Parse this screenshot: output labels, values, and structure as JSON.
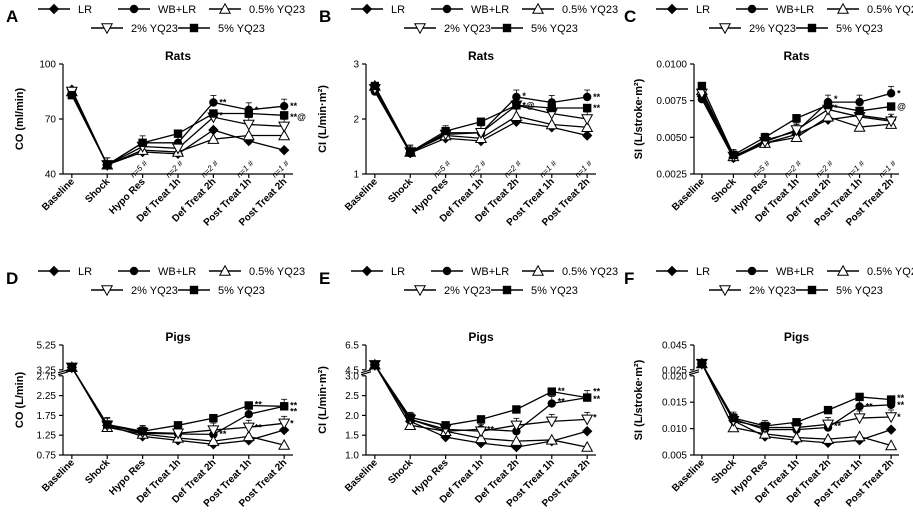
{
  "figure": {
    "legend_series": [
      "LR",
      "WB+LR",
      "0.5% YQ23",
      "2% YQ23",
      "5% YQ23"
    ]
  },
  "chart_data": [
    {
      "panel": "A",
      "type": "line",
      "title": "Rats",
      "xlabel": "",
      "ylabel": "CO (ml/min)",
      "categories": [
        "Baseline",
        "Shock",
        "Hypo Res",
        "Def Treat 1h",
        "Def Treat 2h",
        "Post Treat 1h",
        "Post Treat 2h"
      ],
      "ylim": [
        40,
        100
      ],
      "yscale": "linear",
      "yticks": [
        "40",
        "70",
        "100"
      ],
      "series": [
        {
          "name": "LR",
          "values": [
            86,
            45,
            52,
            51,
            64,
            58,
            53
          ]
        },
        {
          "name": "WB+LR",
          "values": [
            84,
            45,
            57,
            57,
            79,
            75,
            77
          ]
        },
        {
          "name": "0.5% YQ23",
          "values": [
            85,
            45,
            53,
            52,
            59,
            61,
            61
          ]
        },
        {
          "name": "2% YQ23",
          "values": [
            85,
            45,
            55,
            54,
            71,
            67,
            66
          ]
        },
        {
          "name": "5% YQ23",
          "values": [
            83,
            45,
            57,
            62,
            73,
            73,
            72
          ]
        }
      ],
      "annotations": [
        {
          "text": "n=5 #",
          "at": "Hypo Res"
        },
        {
          "text": "n=2 #",
          "at": "Def Treat 1h"
        },
        {
          "text": "n=2 #",
          "at": "Def Treat 2h"
        },
        {
          "text": "n=1 #",
          "at": "Post Treat 1h"
        },
        {
          "text": "n=1 #",
          "at": "Post Treat 2h"
        }
      ],
      "stars": [
        {
          "text": "**",
          "at": "Def Treat 2h",
          "y": 79
        },
        {
          "text": "*",
          "at": "Post Treat 1h",
          "y": 75
        },
        {
          "text": "**",
          "at": "Post Treat 2h",
          "y": 77
        },
        {
          "text": "**@",
          "at": "Post Treat 2h",
          "y": 71
        },
        {
          "text": "*",
          "at": "Def Treat 2h",
          "y": 72
        }
      ]
    },
    {
      "panel": "B",
      "type": "line",
      "title": "Rats",
      "xlabel": "",
      "ylabel": "CI (L/min·m²)",
      "categories": [
        "Baseline",
        "Shock",
        "Hypo Res",
        "Def Treat 1h",
        "Def Treat 2h",
        "Post Treat 1h",
        "Post Treat 2h"
      ],
      "ylim": [
        1,
        3
      ],
      "yscale": "linear",
      "yticks": [
        "1",
        "2",
        "3"
      ],
      "series": [
        {
          "name": "LR",
          "values": [
            2.55,
            1.38,
            1.65,
            1.6,
            1.95,
            1.85,
            1.7
          ]
        },
        {
          "name": "WB+LR",
          "values": [
            2.5,
            1.38,
            1.75,
            1.75,
            2.4,
            2.3,
            2.4
          ]
        },
        {
          "name": "0.5% YQ23",
          "values": [
            2.6,
            1.4,
            1.7,
            1.65,
            2.05,
            1.9,
            1.85
          ]
        },
        {
          "name": "2% YQ23",
          "values": [
            2.55,
            1.4,
            1.72,
            1.75,
            2.25,
            2.1,
            2.0
          ]
        },
        {
          "name": "5% YQ23",
          "values": [
            2.6,
            1.4,
            1.78,
            1.95,
            2.25,
            2.2,
            2.2
          ]
        }
      ],
      "annotations": [
        {
          "text": "n=5 #",
          "at": "Hypo Res"
        },
        {
          "text": "n=2 #",
          "at": "Def Treat 1h"
        },
        {
          "text": "n=2 #",
          "at": "Def Treat 2h"
        },
        {
          "text": "n=1 #",
          "at": "Post Treat 1h"
        },
        {
          "text": "n=1 #",
          "at": "Post Treat 2h"
        }
      ],
      "stars": [
        {
          "text": "*",
          "at": "Def Treat 2h",
          "y": 2.42
        },
        {
          "text": "**",
          "at": "Post Treat 2h",
          "y": 2.4
        },
        {
          "text": "**",
          "at": "Post Treat 2h",
          "y": 2.2
        },
        {
          "text": "*@",
          "at": "Def Treat 2h",
          "y": 2.25
        }
      ]
    },
    {
      "panel": "C",
      "type": "line",
      "title": "Rats",
      "xlabel": "",
      "ylabel": "SI (L/stroke·m²)",
      "categories": [
        "Baseline",
        "Shock",
        "Hypo Res",
        "Def Treat 1h",
        "Def Treat 2h",
        "Post Treat 1h",
        "Post Treat 2h"
      ],
      "ylim": [
        0.0025,
        0.01
      ],
      "yscale": "linear",
      "yticks": [
        "0.0025",
        "0.0050",
        "0.0075",
        "0.0100"
      ],
      "series": [
        {
          "name": "LR",
          "values": [
            0.0078,
            0.0036,
            0.0046,
            0.0052,
            0.0062,
            0.0065,
            0.0062
          ]
        },
        {
          "name": "WB+LR",
          "values": [
            0.0076,
            0.0036,
            0.0048,
            0.0054,
            0.0074,
            0.0074,
            0.008
          ]
        },
        {
          "name": "0.5% YQ23",
          "values": [
            0.0082,
            0.0037,
            0.0046,
            0.005,
            0.0064,
            0.0057,
            0.0059
          ]
        },
        {
          "name": "2% YQ23",
          "values": [
            0.008,
            0.0037,
            0.0047,
            0.0055,
            0.0069,
            0.0064,
            0.0061
          ]
        },
        {
          "name": "5% YQ23",
          "values": [
            0.0085,
            0.0038,
            0.005,
            0.0063,
            0.0072,
            0.0068,
            0.0071
          ]
        }
      ],
      "annotations": [
        {
          "text": "n=5 #",
          "at": "Hypo Res"
        },
        {
          "text": "n=2 #",
          "at": "Def Treat 1h"
        },
        {
          "text": "n=2 #",
          "at": "Def Treat 2h"
        },
        {
          "text": "n=1 #",
          "at": "Post Treat 1h"
        },
        {
          "text": "n=1 #",
          "at": "Post Treat 2h"
        }
      ],
      "stars": [
        {
          "text": "*",
          "at": "Def Treat 2h",
          "y": 0.0076
        },
        {
          "text": "*",
          "at": "Post Treat 2h",
          "y": 0.008
        },
        {
          "text": "@",
          "at": "Post Treat 2h",
          "y": 0.0071
        },
        {
          "text": "*",
          "at": "Def Treat 2h",
          "y": 0.007
        }
      ]
    },
    {
      "panel": "D",
      "type": "line",
      "title": "Pigs",
      "xlabel": "",
      "ylabel": "CO (L/min)",
      "categories": [
        "Baseline",
        "Shock",
        "Hypo Res",
        "Def Treat 1h",
        "Def Treat 2h",
        "Post Treat 1h",
        "Post Treat 2h"
      ],
      "ylim": [
        0.75,
        5.25
      ],
      "yscale": "broken",
      "ybreak": {
        "low": [
          0.75,
          2.75
        ],
        "high": [
          3.25,
          5.25
        ]
      },
      "yticks": [
        "0.75",
        "1.25",
        "1.75",
        "2.25",
        "2.75",
        "3.25",
        "5.25"
      ],
      "series": [
        {
          "name": "LR",
          "values": [
            3.45,
            1.5,
            1.22,
            1.12,
            1.02,
            1.12,
            1.38
          ]
        },
        {
          "name": "WB+LR",
          "values": [
            3.45,
            1.52,
            1.3,
            1.28,
            1.27,
            1.78,
            1.98
          ]
        },
        {
          "name": "0.5% YQ23",
          "values": [
            3.45,
            1.45,
            1.28,
            1.18,
            1.1,
            1.22,
            1.0
          ]
        },
        {
          "name": "2% YQ23",
          "values": [
            3.45,
            1.5,
            1.32,
            1.3,
            1.38,
            1.45,
            1.55
          ]
        },
        {
          "name": "5% YQ23",
          "values": [
            3.45,
            1.52,
            1.35,
            1.5,
            1.68,
            2.0,
            1.98
          ]
        }
      ],
      "annotations": [],
      "stars": [
        {
          "text": "**",
          "at": "Post Treat 1h",
          "y": 2.02
        },
        {
          "text": "**",
          "at": "Post Treat 2h",
          "y": 2.0
        },
        {
          "text": "**",
          "at": "Post Treat 2h",
          "y": 1.85
        },
        {
          "text": "**",
          "at": "Post Treat 1h",
          "y": 1.45
        },
        {
          "text": "*",
          "at": "Post Treat 2h",
          "y": 1.55
        },
        {
          "text": "**",
          "at": "Def Treat 2h",
          "y": 1.28
        }
      ]
    },
    {
      "panel": "E",
      "type": "line",
      "title": "Pigs",
      "xlabel": "",
      "ylabel": "CI (L/min·m²)",
      "categories": [
        "Baseline",
        "Shock",
        "Hypo Res",
        "Def Treat 1h",
        "Def Treat 2h",
        "Post Treat 1h",
        "Post Treat 2h"
      ],
      "ylim": [
        1.0,
        6.5
      ],
      "yscale": "broken",
      "ybreak": {
        "low": [
          1.0,
          3.0
        ],
        "high": [
          4.5,
          6.5
        ]
      },
      "yticks": [
        "1.0",
        "1.5",
        "2.0",
        "2.5",
        "3.0",
        "4.5",
        "6.5"
      ],
      "series": [
        {
          "name": "LR",
          "values": [
            4.9,
            1.85,
            1.45,
            1.3,
            1.2,
            1.35,
            1.6
          ]
        },
        {
          "name": "WB+LR",
          "values": [
            4.9,
            1.9,
            1.6,
            1.65,
            1.6,
            2.3,
            2.45
          ]
        },
        {
          "name": "0.5% YQ23",
          "values": [
            4.9,
            1.75,
            1.6,
            1.42,
            1.35,
            1.38,
            1.2
          ]
        },
        {
          "name": "2% YQ23",
          "values": [
            4.9,
            1.9,
            1.65,
            1.6,
            1.75,
            1.85,
            1.9
          ]
        },
        {
          "name": "5% YQ23",
          "values": [
            4.9,
            1.95,
            1.75,
            1.9,
            2.15,
            2.6,
            2.45
          ]
        }
      ],
      "annotations": [],
      "stars": [
        {
          "text": "**",
          "at": "Post Treat 1h",
          "y": 2.62
        },
        {
          "text": "**",
          "at": "Post Treat 2h",
          "y": 2.6
        },
        {
          "text": "**",
          "at": "Post Treat 2h",
          "y": 2.42
        },
        {
          "text": "*",
          "at": "Post Treat 2h",
          "y": 1.95
        },
        {
          "text": "**",
          "at": "Def Treat 1h",
          "y": 1.65
        },
        {
          "text": "**",
          "at": "Post Treat 1h",
          "y": 2.35
        }
      ]
    },
    {
      "panel": "F",
      "type": "line",
      "title": "Pigs",
      "xlabel": "",
      "ylabel": "SI (L/stroke·m²)",
      "categories": [
        "Baseline",
        "Shock",
        "Hypo Res",
        "Def Treat 1h",
        "Def Treat 2h",
        "Post Treat 1h",
        "Post Treat 2h"
      ],
      "ylim": [
        0.005,
        0.045
      ],
      "yscale": "broken",
      "ybreak": {
        "low": [
          0.005,
          0.02
        ],
        "high": [
          0.025,
          0.045
        ]
      },
      "yticks": [
        "0.005",
        "0.010",
        "0.015",
        "0.020",
        "0.025",
        "0.045"
      ],
      "series": [
        {
          "name": "LR",
          "values": [
            0.03,
            0.0115,
            0.0085,
            0.0078,
            0.0073,
            0.0078,
            0.0098
          ]
        },
        {
          "name": "WB+LR",
          "values": [
            0.03,
            0.0118,
            0.0098,
            0.0098,
            0.0102,
            0.0142,
            0.0145
          ]
        },
        {
          "name": "0.5% YQ23",
          "values": [
            0.03,
            0.0102,
            0.009,
            0.0083,
            0.008,
            0.0085,
            0.0068
          ]
        },
        {
          "name": "2% YQ23",
          "values": [
            0.03,
            0.0115,
            0.0102,
            0.0102,
            0.0108,
            0.012,
            0.0122
          ]
        },
        {
          "name": "5% YQ23",
          "values": [
            0.03,
            0.012,
            0.0105,
            0.0112,
            0.0135,
            0.016,
            0.0155
          ]
        }
      ],
      "annotations": [],
      "stars": [
        {
          "text": "**",
          "at": "Post Treat 2h",
          "y": 0.0158
        },
        {
          "text": "**",
          "at": "Post Treat 2h",
          "y": 0.0145
        },
        {
          "text": "*",
          "at": "Post Treat 2h",
          "y": 0.0122
        },
        {
          "text": "**",
          "at": "Post Treat 1h",
          "y": 0.0142
        },
        {
          "text": "**",
          "at": "Def Treat 2h",
          "y": 0.0105
        }
      ]
    }
  ]
}
